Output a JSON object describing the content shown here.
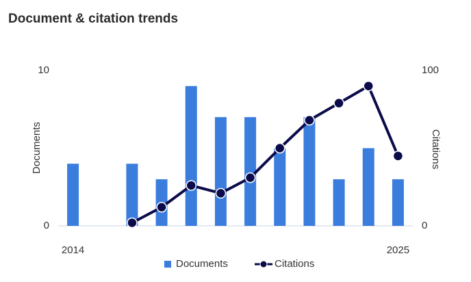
{
  "chart_data": {
    "type": "bar_line",
    "title": "Document & citation trends",
    "categories": [
      "2014",
      null,
      null,
      null,
      null,
      null,
      null,
      null,
      null,
      null,
      null,
      "2025"
    ],
    "series": [
      {
        "name": "Documents",
        "type": "bar",
        "color": "#3b7ddd",
        "axis": "y",
        "values": [
          4,
          0,
          4,
          3,
          9,
          7,
          7,
          5,
          7,
          3,
          5,
          3
        ]
      },
      {
        "name": "Citations",
        "type": "line",
        "color": "#0b0b4b",
        "axis": "y2",
        "values": [
          null,
          null,
          2,
          12,
          26,
          21,
          31,
          50,
          68,
          79,
          90,
          45
        ]
      }
    ],
    "ylabel": "Documents",
    "y2label": "Citations",
    "ylim": [
      0,
      10
    ],
    "yticks": [
      0,
      10
    ],
    "y2lim": [
      0,
      100
    ],
    "y2ticks": [
      0,
      100
    ],
    "legend": "bottom"
  }
}
